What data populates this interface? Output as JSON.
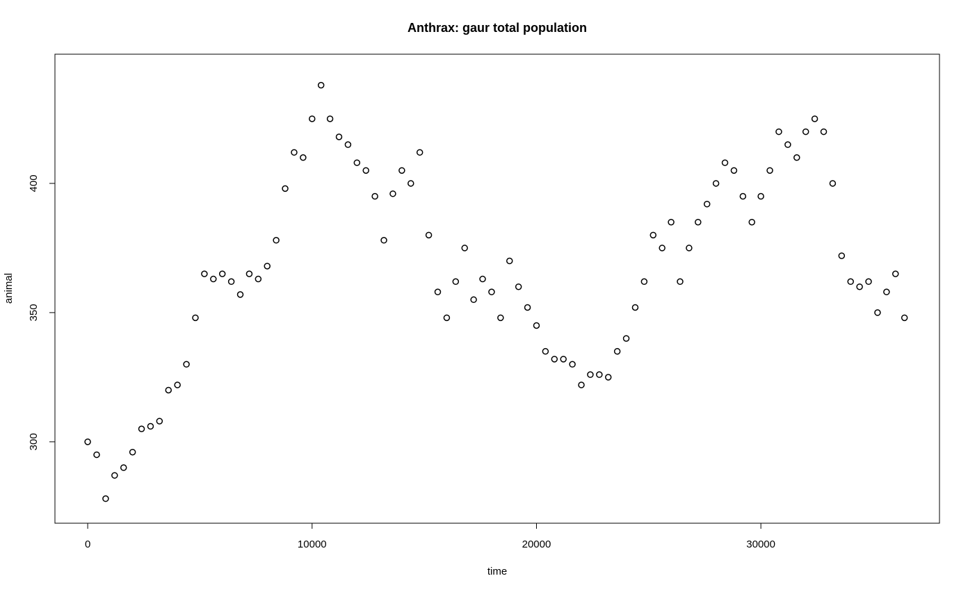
{
  "chart_data": {
    "type": "scatter",
    "title": "Anthrax: gaur total population",
    "xlabel": "time",
    "ylabel": "animal",
    "x": [
      0,
      400,
      800,
      1200,
      1600,
      2000,
      2400,
      2800,
      3200,
      3600,
      4000,
      4400,
      4800,
      5200,
      5600,
      6000,
      6400,
      6800,
      7200,
      7600,
      8000,
      8400,
      8800,
      9200,
      9600,
      10000,
      10400,
      10800,
      11200,
      11600,
      12000,
      12400,
      12800,
      13200,
      13600,
      14000,
      14400,
      14800,
      15200,
      15600,
      16000,
      16400,
      16800,
      17200,
      17600,
      18000,
      18400,
      18800,
      19200,
      19600,
      20000,
      20400,
      20800,
      21200,
      21600,
      22000,
      22400,
      22800,
      23200,
      23600,
      24000,
      24400,
      24800,
      25200,
      25600,
      26000,
      26400,
      26800,
      27200,
      27600,
      28000,
      28400,
      28800,
      29200,
      29600,
      30000,
      30400,
      30800,
      31200,
      31600,
      32000,
      32400,
      32800,
      33200,
      33600,
      34000,
      34400,
      34800,
      35200,
      35600,
      36000,
      36400
    ],
    "values": [
      300,
      295,
      278,
      287,
      290,
      296,
      305,
      306,
      308,
      320,
      322,
      330,
      348,
      365,
      363,
      365,
      362,
      357,
      365,
      363,
      368,
      378,
      398,
      412,
      410,
      425,
      438,
      425,
      418,
      415,
      408,
      405,
      395,
      378,
      396,
      405,
      400,
      412,
      380,
      358,
      348,
      362,
      375,
      355,
      363,
      358,
      348,
      370,
      360,
      352,
      345,
      335,
      332,
      332,
      330,
      322,
      326,
      326,
      325,
      335,
      340,
      352,
      362,
      380,
      375,
      385,
      362,
      375,
      385,
      392,
      400,
      408,
      405,
      395,
      385,
      395,
      405,
      420,
      415,
      410,
      420,
      425,
      420,
      400,
      372,
      362,
      360,
      362,
      350,
      358,
      365,
      348
    ],
    "color": "#000000",
    "xlim": [
      -1460,
      37960
    ],
    "ylim": [
      268.5,
      450
    ],
    "xticks": [
      0,
      10000,
      20000,
      30000
    ],
    "yticks": [
      300,
      350,
      400
    ]
  }
}
